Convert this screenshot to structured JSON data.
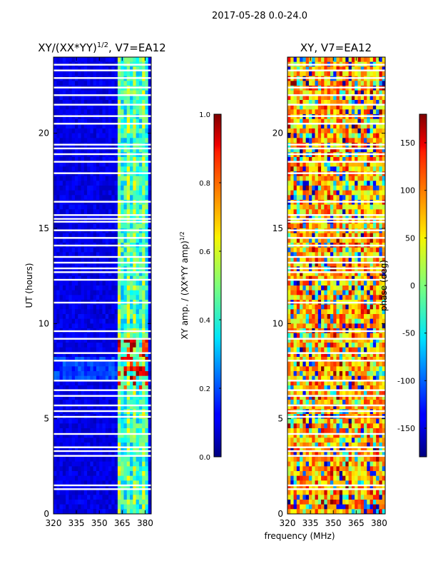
{
  "suptitle": "2017-05-28 0.0-24.0",
  "shared_xlabel": "frequency (MHz)",
  "chart_data": [
    {
      "type": "heatmap",
      "title": "XY/(XX*YY)^1/2, V7=EA12",
      "title_main": "XY/(XX*YY)",
      "title_exp": "1/2",
      "title_tail": ", V7=EA12",
      "xlabel": "frequency (MHz)",
      "ylabel": "UT (hours)",
      "x_range": [
        320,
        384
      ],
      "y_range": [
        0,
        24
      ],
      "x_ticks": [
        320,
        335,
        350,
        365,
        380
      ],
      "y_ticks": [
        0,
        5,
        10,
        15,
        20
      ],
      "colormap": "jet",
      "colorbar": {
        "label": "XY amp. / (XX*YY amp)^1/2",
        "label_main": "XY amp. / (XX*YY amp)",
        "label_exp": "1/2",
        "range": [
          0.0,
          1.0
        ],
        "ticks": [
          "0.0",
          "0.2",
          "0.4",
          "0.6",
          "0.8",
          "1.0"
        ],
        "tick_values": [
          0.0,
          0.2,
          0.4,
          0.6,
          0.8,
          1.0
        ]
      }
    },
    {
      "type": "heatmap",
      "title": "XY, V7=EA12",
      "xlabel": "frequency (MHz)",
      "ylabel": "",
      "x_range": [
        320,
        384
      ],
      "y_range": [
        0,
        24
      ],
      "x_ticks": [
        320,
        335,
        350,
        365,
        380
      ],
      "y_ticks": [
        0,
        5,
        10,
        15,
        20
      ],
      "colormap": "jet",
      "colorbar": {
        "label": "phase (deg)",
        "range": [
          -180,
          180
        ],
        "ticks": [
          "-150",
          "-100",
          "-50",
          "0",
          "50",
          "100",
          "150"
        ],
        "tick_values": [
          -150,
          -100,
          -50,
          0,
          50,
          100,
          150
        ]
      }
    }
  ],
  "flagged_hours": [
    1.3,
    1.5,
    3.05,
    3.3,
    3.5,
    4.2,
    5.1,
    5.4,
    5.7,
    6.2,
    6.5,
    7.0,
    8.05,
    8.45,
    9.2,
    9.6,
    11.1,
    12.3,
    12.7,
    12.9,
    13.2,
    13.5,
    14.1,
    14.5,
    14.9,
    15.35,
    15.5,
    15.7,
    16.4,
    17.9,
    18.5,
    18.9,
    19.2,
    19.4,
    20.5,
    20.9,
    21.5,
    22.0,
    22.4,
    22.9,
    23.3,
    23.6
  ]
}
